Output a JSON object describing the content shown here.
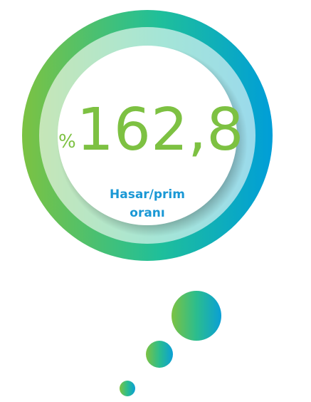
{
  "metric": {
    "prefix": "%",
    "value": "162,8",
    "label": [
      "Hasar/prim",
      "oranı"
    ]
  }
}
